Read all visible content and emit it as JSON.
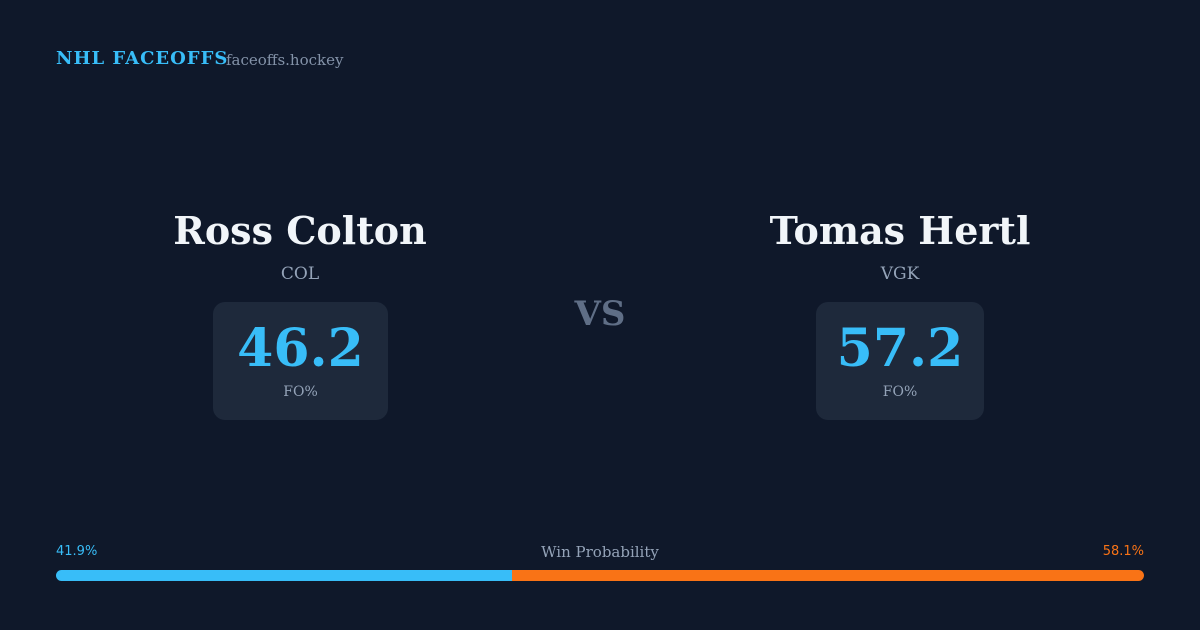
{
  "header": {
    "title": "NHL FACEOFFS",
    "site": "faceoffs.hockey"
  },
  "players": [
    {
      "name": "Ross Colton",
      "team": "COL",
      "fo_pct": 46.2,
      "stat_label": "FO%"
    },
    {
      "name": "Tomas Hertl",
      "team": "VGK",
      "fo_pct": 57.2,
      "stat_label": "FO%"
    }
  ],
  "vs": "VS",
  "win_probability": {
    "label": "Win Probability",
    "values": [
      41.9,
      58.1
    ],
    "value_labels": [
      "41.9%",
      "58.1%"
    ],
    "colors": [
      "#38bdf8",
      "#f97316"
    ]
  }
}
